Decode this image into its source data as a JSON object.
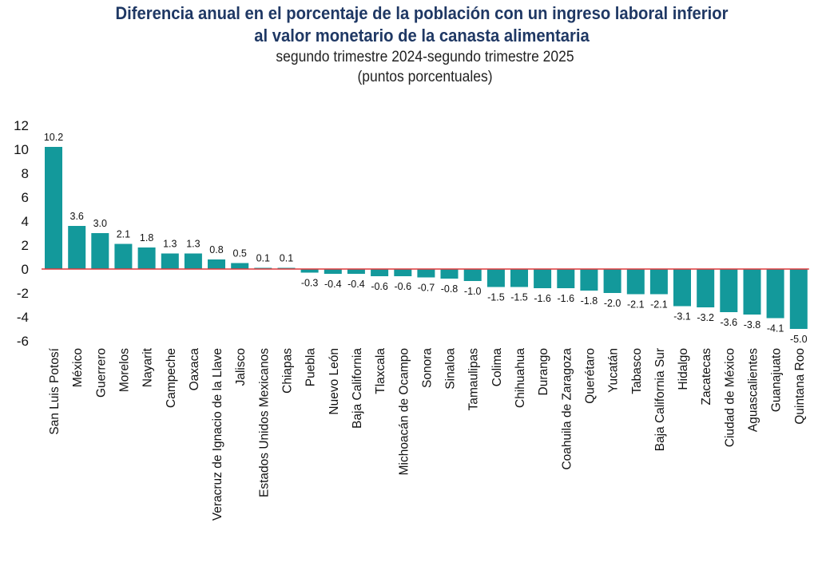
{
  "chart_data": {
    "type": "bar",
    "title": "Diferencia anual en el porcentaje de la población con un ingreso laboral inferior al valor monetario de la canasta alimentaria",
    "title_lines": [
      "Diferencia anual en el porcentaje de la población con un ingreso laboral inferior",
      "al valor monetario de la canasta alimentaria"
    ],
    "subtitle_lines": [
      "segundo trimestre 2024-segundo trimestre 2025",
      "(puntos porcentuales)"
    ],
    "xlabel": "",
    "ylabel": "",
    "ylim": [
      -6,
      12
    ],
    "yticks": [
      12,
      10,
      8,
      6,
      4,
      2,
      0,
      -2,
      -4,
      -6
    ],
    "grid": false,
    "legend": "none",
    "colors": {
      "bar": "#13999b",
      "zero_line": "#e0393b",
      "title": "#1f3864"
    },
    "categories": [
      "San Luis Potosí",
      "México",
      "Guerrero",
      "Morelos",
      "Nayarit",
      "Campeche",
      "Oaxaca",
      "Veracruz de Ignacio de la Llave",
      "Jalisco",
      "Estados Unidos Mexicanos",
      "Chiapas",
      "Puebla",
      "Nuevo León",
      "Baja California",
      "Tlaxcala",
      "Michoacán de Ocampo",
      "Sonora",
      "Sinaloa",
      "Tamaulipas",
      "Colima",
      "Chihuahua",
      "Durango",
      "Coahuila de Zaragoza",
      "Querétaro",
      "Yucatán",
      "Tabasco",
      "Baja California Sur",
      "Hidalgo",
      "Zacatecas",
      "Ciudad de México",
      "Aguascalientes",
      "Guanajuato",
      "Quintana Roo"
    ],
    "values": [
      10.2,
      3.6,
      3.0,
      2.1,
      1.8,
      1.3,
      1.3,
      0.8,
      0.5,
      0.1,
      0.1,
      -0.3,
      -0.4,
      -0.4,
      -0.6,
      -0.6,
      -0.7,
      -0.8,
      -1.0,
      -1.5,
      -1.5,
      -1.6,
      -1.6,
      -1.8,
      -2.0,
      -2.1,
      -2.1,
      -3.1,
      -3.2,
      -3.6,
      -3.8,
      -4.1,
      -5.0
    ],
    "value_labels": [
      "10.2",
      "3.6",
      "3.0",
      "2.1",
      "1.8",
      "1.3",
      "1.3",
      "0.8",
      "0.5",
      "0.1",
      "0.1",
      "-0.3",
      "-0.4",
      "-0.4",
      "-0.6",
      "-0.6",
      "-0.7",
      "-0.8",
      "-1.0",
      "-1.5",
      "-1.5",
      "-1.6",
      "-1.6",
      "-1.8",
      "-2.0",
      "-2.1",
      "-2.1",
      "-3.1",
      "-3.2",
      "-3.6",
      "-3.8",
      "-4.1",
      "-5.0"
    ]
  }
}
